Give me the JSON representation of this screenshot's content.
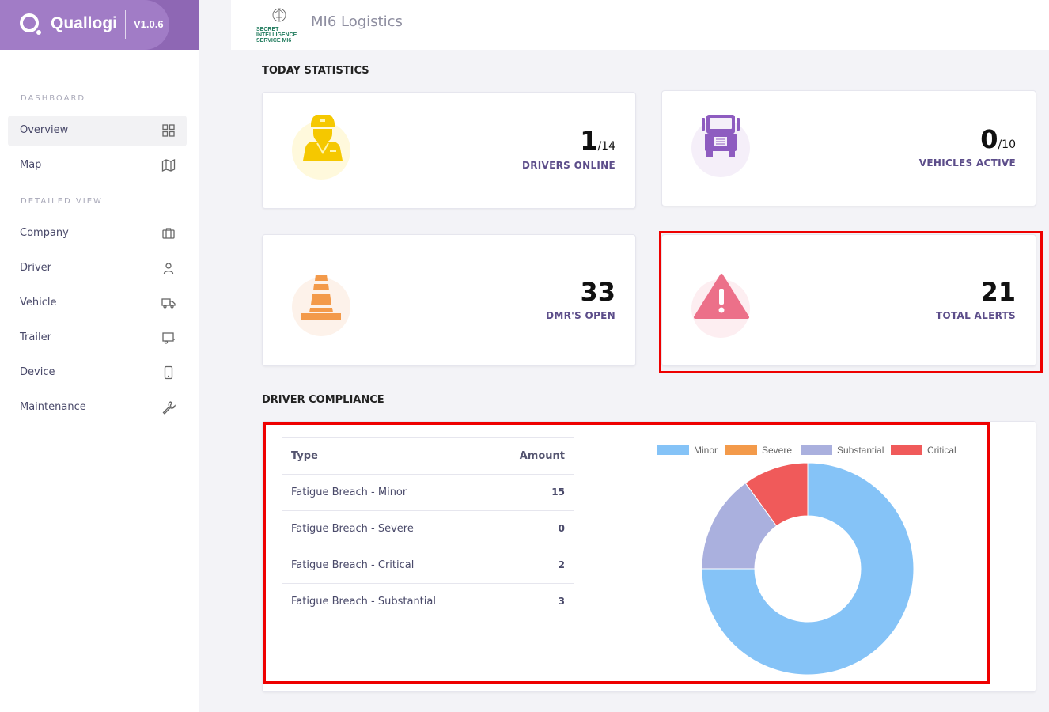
{
  "brand": {
    "name": "Quallogi",
    "version": "V1.0.6"
  },
  "org": {
    "name": "MI6 Logistics",
    "logo_text": [
      "SECRET",
      "INTELLIGENCE",
      "SERVICE MI6"
    ]
  },
  "sidebar": {
    "sections": [
      {
        "label": "DASHBOARD"
      },
      {
        "label": "DETAILED VIEW"
      }
    ],
    "items": [
      {
        "label": "Overview",
        "icon": "grid-icon"
      },
      {
        "label": "Map",
        "icon": "map-icon"
      },
      {
        "label": "Company",
        "icon": "briefcase-icon"
      },
      {
        "label": "Driver",
        "icon": "user-icon"
      },
      {
        "label": "Vehicle",
        "icon": "truck-icon"
      },
      {
        "label": "Trailer",
        "icon": "trailer-icon"
      },
      {
        "label": "Device",
        "icon": "device-icon"
      },
      {
        "label": "Maintenance",
        "icon": "wrench-icon"
      }
    ]
  },
  "today": {
    "title": "TODAY STATISTICS",
    "drivers": {
      "value": "1",
      "sub": "/14",
      "label": "DRIVERS ONLINE"
    },
    "vehicles": {
      "value": "0",
      "sub": "/10",
      "label": "VEHICLES ACTIVE"
    },
    "dmrs": {
      "value": "33",
      "label": "DMR'S OPEN"
    },
    "alerts": {
      "value": "21",
      "label": "TOTAL ALERTS"
    }
  },
  "compliance": {
    "title": "DRIVER COMPLIANCE",
    "columns": [
      "Type",
      "Amount"
    ],
    "rows": [
      {
        "type": "Fatigue Breach - Minor",
        "amount": "15"
      },
      {
        "type": "Fatigue Breach - Severe",
        "amount": "0"
      },
      {
        "type": "Fatigue Breach - Critical",
        "amount": "2"
      },
      {
        "type": "Fatigue Breach - Substantial",
        "amount": "3"
      }
    ]
  },
  "chart_data": {
    "type": "pie",
    "title": "",
    "categories": [
      "Minor",
      "Severe",
      "Substantial",
      "Critical"
    ],
    "values": [
      15,
      0,
      3,
      2
    ],
    "colors": [
      "#85c3f7",
      "#f39a4a",
      "#aab0de",
      "#f05a5a"
    ],
    "legend_position": "top"
  },
  "colors": {
    "brand": "#8e67b4",
    "accent_text": "#5c4d8a",
    "highlight": "#e00000"
  }
}
